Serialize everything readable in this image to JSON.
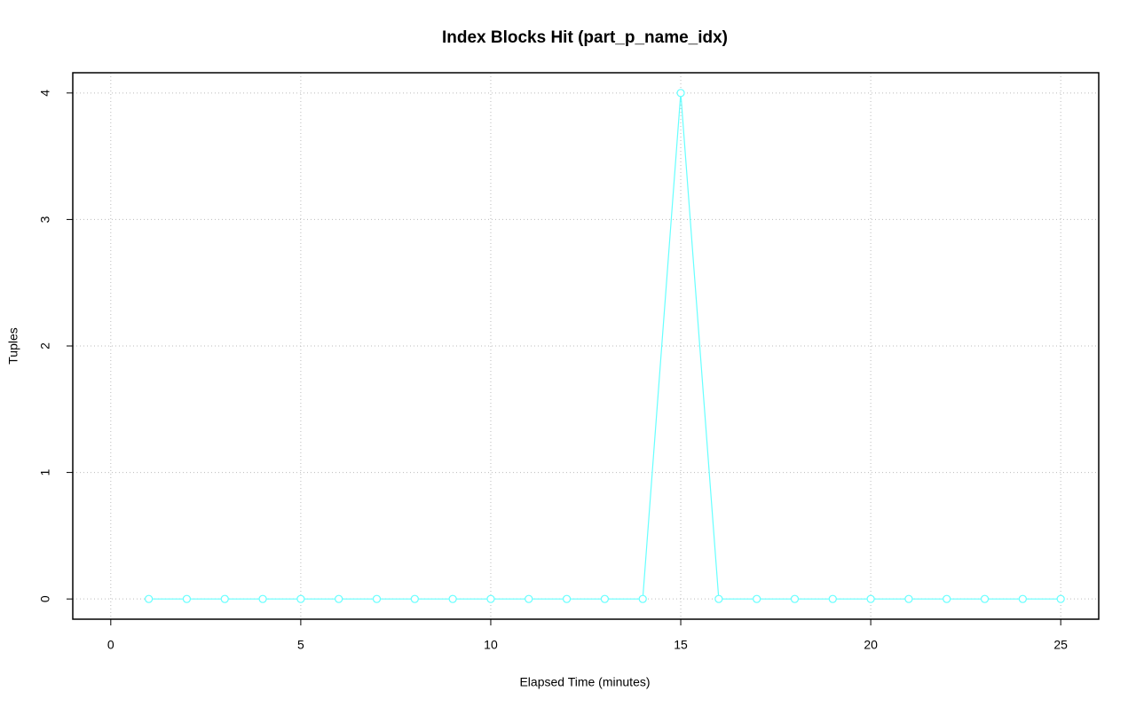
{
  "chart_data": {
    "type": "line",
    "title": "Index Blocks Hit (part_p_name_idx)",
    "x_label": "Elapsed Time (minutes)",
    "y_label": "Tuples",
    "x": [
      1,
      2,
      3,
      4,
      5,
      6,
      7,
      8,
      9,
      10,
      11,
      12,
      13,
      14,
      15,
      16,
      17,
      18,
      19,
      20,
      21,
      22,
      23,
      24,
      25
    ],
    "series": [
      {
        "color": "#66ffff",
        "values": [
          0,
          0,
          0,
          0,
          0,
          0,
          0,
          0,
          0,
          0,
          0,
          0,
          0,
          0,
          4,
          0,
          0,
          0,
          0,
          0,
          0,
          0,
          0,
          0,
          0
        ]
      }
    ],
    "xlim": [
      -1,
      26
    ],
    "ylim": [
      -0.16,
      4.16
    ],
    "xticks": [
      0,
      5,
      10,
      15,
      20,
      25
    ],
    "yticks": [
      0,
      1,
      2,
      3,
      4
    ],
    "grid": true
  }
}
